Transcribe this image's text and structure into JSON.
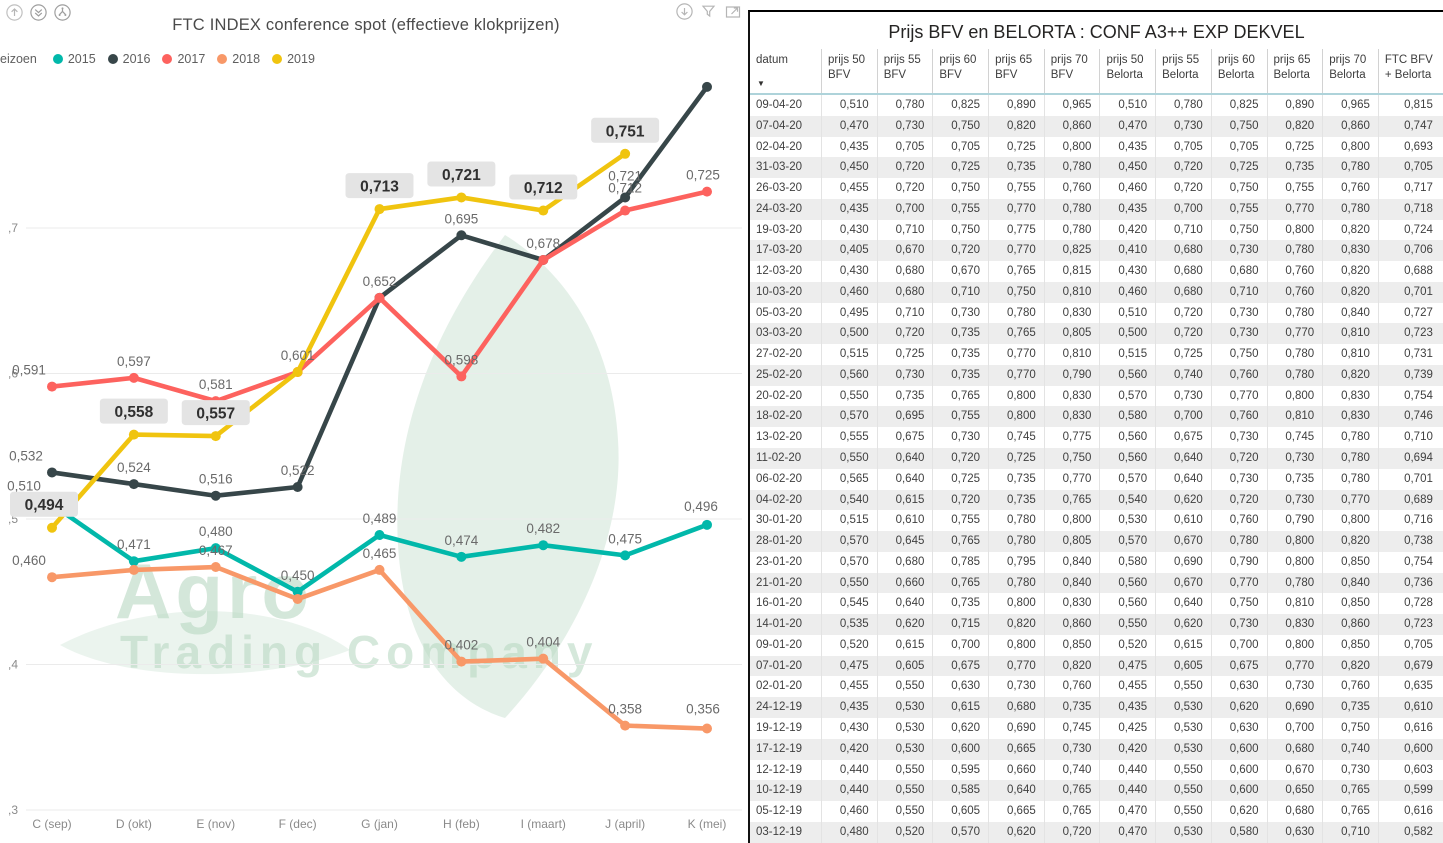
{
  "chart": {
    "title": "FTC INDEX conference spot (effectieve klokprijzen)",
    "legend_label": "eizoen",
    "toolbar_left_icons": [
      "drill-up",
      "drill-down-all",
      "expand-all-levels"
    ],
    "toolbar_right_icons": [
      "drill-down",
      "filter",
      "focus-mode"
    ],
    "watermark": {
      "line1": "Agro",
      "line2": "Trading Company"
    },
    "colors": {
      "label_box_bg": "#e4e4e4",
      "grid_line": "#ebebeb",
      "axis_text": "#8a8a8a",
      "label_text": "#6a6a6a",
      "watermark_green": "#b8d8c2"
    }
  },
  "chart_data": {
    "type": "line",
    "title": "FTC INDEX conference spot (effectieve klokprijzen)",
    "categories": [
      "C (sep)",
      "D (okt)",
      "E (nov)",
      "F (dec)",
      "G (jan)",
      "H (feb)",
      "I (maart)",
      "J (april)",
      "K (mei)"
    ],
    "ylim": [
      0.3,
      0.82
    ],
    "y_ticks": [
      {
        "value": 0.7,
        "label": ",7"
      },
      {
        "value": 0.6,
        "label": ",6"
      },
      {
        "value": 0.5,
        "label": ",5"
      },
      {
        "value": 0.4,
        "label": ",4"
      },
      {
        "value": 0.3,
        "label": ",3"
      }
    ],
    "grid": true,
    "legend_position": "top-left",
    "series": [
      {
        "name": "2015",
        "color": "#01B8AA",
        "boxed_labels": false,
        "values": [
          0.51,
          0.471,
          0.48,
          0.45,
          0.489,
          0.474,
          0.482,
          0.475,
          0.496
        ],
        "labels": [
          "0,510",
          "0,471",
          "0,480",
          "0,450",
          "0,489",
          "0,474",
          "0,482",
          "0,475",
          "0,496"
        ]
      },
      {
        "name": "2016",
        "color": "#374649",
        "boxed_labels": false,
        "values": [
          0.532,
          0.524,
          0.516,
          0.522,
          0.652,
          0.695,
          0.678,
          0.721,
          0.797
        ],
        "labels": [
          "0,532",
          "0,524",
          "0,516",
          "0,522",
          "0,652",
          "0,695",
          "0,678",
          "0,721",
          null
        ]
      },
      {
        "name": "2017",
        "color": "#FD625E",
        "boxed_labels": false,
        "values": [
          0.591,
          0.597,
          0.581,
          0.601,
          0.652,
          0.598,
          0.678,
          0.712,
          0.725
        ],
        "labels": [
          "0,591",
          "0,597",
          "0,581",
          "0,601",
          null,
          "0,598",
          null,
          "0,712",
          "0,725"
        ]
      },
      {
        "name": "2018",
        "color": "#F89868",
        "boxed_labels": false,
        "values": [
          0.46,
          0.465,
          0.467,
          0.445,
          0.465,
          0.402,
          0.404,
          0.358,
          0.356
        ],
        "labels": [
          "0,460",
          null,
          "0,467",
          null,
          "0,465",
          "0,402",
          "0,404",
          "0,358",
          "0,356"
        ]
      },
      {
        "name": "2019",
        "color": "#F0C40F",
        "boxed_labels": true,
        "values": [
          0.494,
          0.558,
          0.557,
          0.601,
          0.713,
          0.721,
          0.712,
          0.751,
          null
        ],
        "labels": [
          "0,494",
          "0,558",
          "0,557",
          null,
          "0,713",
          "0,721",
          "0,712",
          "0,751",
          null
        ]
      }
    ]
  },
  "table": {
    "title": "Prijs BFV en BELORTA : CONF A3++  EXP  DEKVEL",
    "sort_column": "datum",
    "sort_direction": "desc",
    "columns": [
      {
        "l1": "datum",
        "l2": ""
      },
      {
        "l1": "prijs 50",
        "l2": "BFV"
      },
      {
        "l1": "prijs 55",
        "l2": "BFV"
      },
      {
        "l1": "prijs 60",
        "l2": "BFV"
      },
      {
        "l1": "prijs 65",
        "l2": "BFV"
      },
      {
        "l1": "prijs 70",
        "l2": "BFV"
      },
      {
        "l1": "prijs 50",
        "l2": "Belorta"
      },
      {
        "l1": "prijs 55",
        "l2": "Belorta"
      },
      {
        "l1": "prijs 60",
        "l2": "Belorta"
      },
      {
        "l1": "prijs 65",
        "l2": "Belorta"
      },
      {
        "l1": "prijs 70",
        "l2": "Belorta"
      },
      {
        "l1": "FTC BFV",
        "l2": "+ Belorta"
      }
    ],
    "rows": [
      [
        "09-04-20",
        "0,510",
        "0,780",
        "0,825",
        "0,890",
        "0,965",
        "0,510",
        "0,780",
        "0,825",
        "0,890",
        "0,965",
        "0,815"
      ],
      [
        "07-04-20",
        "0,470",
        "0,730",
        "0,750",
        "0,820",
        "0,860",
        "0,470",
        "0,730",
        "0,750",
        "0,820",
        "0,860",
        "0,747"
      ],
      [
        "02-04-20",
        "0,435",
        "0,705",
        "0,705",
        "0,725",
        "0,800",
        "0,435",
        "0,705",
        "0,705",
        "0,725",
        "0,800",
        "0,693"
      ],
      [
        "31-03-20",
        "0,450",
        "0,720",
        "0,725",
        "0,735",
        "0,780",
        "0,450",
        "0,720",
        "0,725",
        "0,735",
        "0,780",
        "0,705"
      ],
      [
        "26-03-20",
        "0,455",
        "0,720",
        "0,750",
        "0,755",
        "0,760",
        "0,460",
        "0,720",
        "0,750",
        "0,755",
        "0,760",
        "0,717"
      ],
      [
        "24-03-20",
        "0,435",
        "0,700",
        "0,755",
        "0,770",
        "0,780",
        "0,435",
        "0,700",
        "0,755",
        "0,770",
        "0,780",
        "0,718"
      ],
      [
        "19-03-20",
        "0,430",
        "0,710",
        "0,750",
        "0,775",
        "0,780",
        "0,420",
        "0,710",
        "0,750",
        "0,800",
        "0,820",
        "0,724"
      ],
      [
        "17-03-20",
        "0,405",
        "0,670",
        "0,720",
        "0,770",
        "0,825",
        "0,410",
        "0,680",
        "0,730",
        "0,780",
        "0,830",
        "0,706"
      ],
      [
        "12-03-20",
        "0,430",
        "0,680",
        "0,670",
        "0,765",
        "0,815",
        "0,430",
        "0,680",
        "0,680",
        "0,760",
        "0,820",
        "0,688"
      ],
      [
        "10-03-20",
        "0,460",
        "0,680",
        "0,710",
        "0,750",
        "0,810",
        "0,460",
        "0,680",
        "0,710",
        "0,760",
        "0,820",
        "0,701"
      ],
      [
        "05-03-20",
        "0,495",
        "0,710",
        "0,730",
        "0,780",
        "0,830",
        "0,510",
        "0,720",
        "0,730",
        "0,780",
        "0,840",
        "0,727"
      ],
      [
        "03-03-20",
        "0,500",
        "0,720",
        "0,735",
        "0,765",
        "0,805",
        "0,500",
        "0,720",
        "0,730",
        "0,770",
        "0,810",
        "0,723"
      ],
      [
        "27-02-20",
        "0,515",
        "0,725",
        "0,735",
        "0,770",
        "0,810",
        "0,515",
        "0,725",
        "0,750",
        "0,780",
        "0,810",
        "0,731"
      ],
      [
        "25-02-20",
        "0,560",
        "0,730",
        "0,735",
        "0,770",
        "0,790",
        "0,560",
        "0,740",
        "0,760",
        "0,780",
        "0,820",
        "0,739"
      ],
      [
        "20-02-20",
        "0,550",
        "0,735",
        "0,765",
        "0,800",
        "0,830",
        "0,570",
        "0,730",
        "0,770",
        "0,800",
        "0,830",
        "0,754"
      ],
      [
        "18-02-20",
        "0,570",
        "0,695",
        "0,755",
        "0,800",
        "0,830",
        "0,580",
        "0,700",
        "0,760",
        "0,810",
        "0,830",
        "0,746"
      ],
      [
        "13-02-20",
        "0,555",
        "0,675",
        "0,730",
        "0,745",
        "0,775",
        "0,560",
        "0,675",
        "0,730",
        "0,745",
        "0,780",
        "0,710"
      ],
      [
        "11-02-20",
        "0,550",
        "0,640",
        "0,720",
        "0,725",
        "0,750",
        "0,560",
        "0,640",
        "0,720",
        "0,730",
        "0,780",
        "0,694"
      ],
      [
        "06-02-20",
        "0,565",
        "0,640",
        "0,725",
        "0,735",
        "0,770",
        "0,570",
        "0,640",
        "0,730",
        "0,735",
        "0,780",
        "0,701"
      ],
      [
        "04-02-20",
        "0,540",
        "0,615",
        "0,720",
        "0,735",
        "0,765",
        "0,540",
        "0,620",
        "0,720",
        "0,730",
        "0,770",
        "0,689"
      ],
      [
        "30-01-20",
        "0,515",
        "0,610",
        "0,755",
        "0,780",
        "0,800",
        "0,530",
        "0,610",
        "0,760",
        "0,790",
        "0,800",
        "0,716"
      ],
      [
        "28-01-20",
        "0,570",
        "0,645",
        "0,765",
        "0,780",
        "0,805",
        "0,570",
        "0,670",
        "0,780",
        "0,800",
        "0,820",
        "0,738"
      ],
      [
        "23-01-20",
        "0,570",
        "0,680",
        "0,785",
        "0,795",
        "0,840",
        "0,580",
        "0,690",
        "0,790",
        "0,800",
        "0,850",
        "0,754"
      ],
      [
        "21-01-20",
        "0,550",
        "0,660",
        "0,765",
        "0,780",
        "0,840",
        "0,560",
        "0,670",
        "0,770",
        "0,780",
        "0,840",
        "0,736"
      ],
      [
        "16-01-20",
        "0,545",
        "0,640",
        "0,735",
        "0,800",
        "0,830",
        "0,560",
        "0,640",
        "0,750",
        "0,810",
        "0,850",
        "0,728"
      ],
      [
        "14-01-20",
        "0,535",
        "0,620",
        "0,715",
        "0,820",
        "0,860",
        "0,550",
        "0,620",
        "0,730",
        "0,830",
        "0,860",
        "0,723"
      ],
      [
        "09-01-20",
        "0,520",
        "0,615",
        "0,700",
        "0,800",
        "0,850",
        "0,520",
        "0,615",
        "0,700",
        "0,800",
        "0,850",
        "0,705"
      ],
      [
        "07-01-20",
        "0,475",
        "0,605",
        "0,675",
        "0,770",
        "0,820",
        "0,475",
        "0,605",
        "0,675",
        "0,770",
        "0,820",
        "0,679"
      ],
      [
        "02-01-20",
        "0,455",
        "0,550",
        "0,630",
        "0,730",
        "0,760",
        "0,455",
        "0,550",
        "0,630",
        "0,730",
        "0,760",
        "0,635"
      ],
      [
        "24-12-19",
        "0,435",
        "0,530",
        "0,615",
        "0,680",
        "0,735",
        "0,435",
        "0,530",
        "0,620",
        "0,690",
        "0,735",
        "0,610"
      ],
      [
        "19-12-19",
        "0,430",
        "0,530",
        "0,620",
        "0,690",
        "0,745",
        "0,425",
        "0,530",
        "0,630",
        "0,700",
        "0,750",
        "0,616"
      ],
      [
        "17-12-19",
        "0,420",
        "0,530",
        "0,600",
        "0,665",
        "0,730",
        "0,420",
        "0,530",
        "0,600",
        "0,680",
        "0,740",
        "0,600"
      ],
      [
        "12-12-19",
        "0,440",
        "0,550",
        "0,595",
        "0,660",
        "0,740",
        "0,440",
        "0,550",
        "0,600",
        "0,670",
        "0,730",
        "0,603"
      ],
      [
        "10-12-19",
        "0,440",
        "0,550",
        "0,585",
        "0,640",
        "0,765",
        "0,440",
        "0,550",
        "0,600",
        "0,650",
        "0,765",
        "0,599"
      ],
      [
        "05-12-19",
        "0,460",
        "0,550",
        "0,605",
        "0,665",
        "0,765",
        "0,470",
        "0,550",
        "0,620",
        "0,680",
        "0,765",
        "0,616"
      ],
      [
        "03-12-19",
        "0,480",
        "0,520",
        "0,570",
        "0,620",
        "0,720",
        "0,470",
        "0,530",
        "0,580",
        "0,630",
        "0,710",
        "0,582"
      ]
    ]
  }
}
